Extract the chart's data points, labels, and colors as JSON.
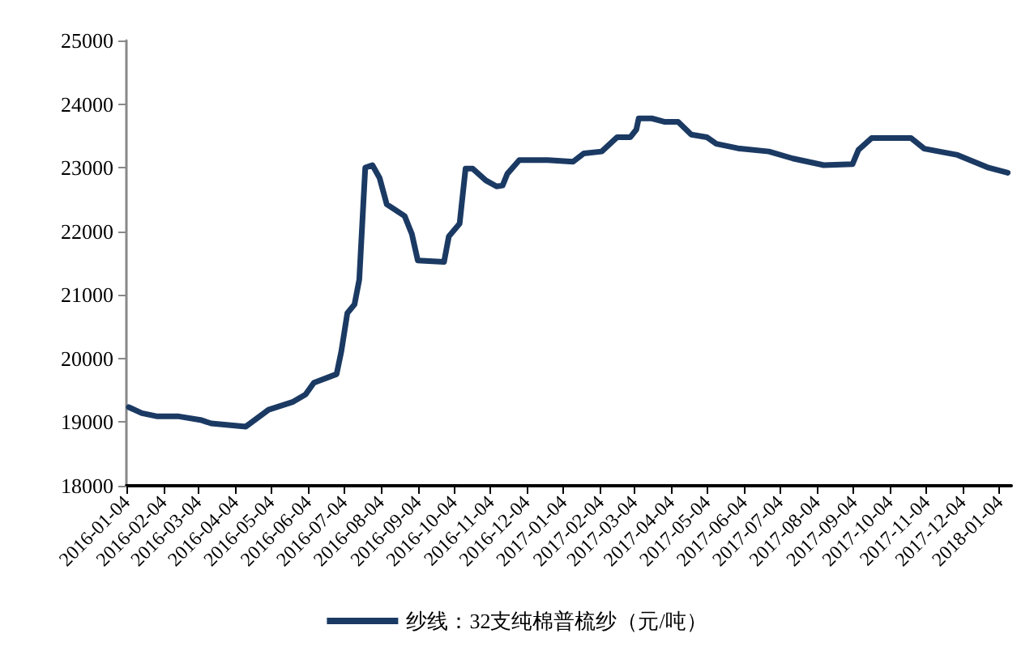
{
  "chart_data": {
    "type": "line",
    "x": [
      "2016-01-06",
      "2016-01-17",
      "2016-01-30",
      "2016-02-17",
      "2016-03-06",
      "2016-03-15",
      "2016-04-04",
      "2016-04-13",
      "2016-05-02",
      "2016-05-22",
      "2016-06-02",
      "2016-06-09",
      "2016-06-28",
      "2016-07-02",
      "2016-07-07",
      "2016-07-13",
      "2016-07-17",
      "2016-07-22",
      "2016-07-28",
      "2016-08-03",
      "2016-08-09",
      "2016-08-24",
      "2016-08-30",
      "2016-09-04",
      "2016-09-26",
      "2016-09-30",
      "2016-10-09",
      "2016-10-14",
      "2016-10-20",
      "2016-10-31",
      "2016-11-09",
      "2016-11-14",
      "2016-11-18",
      "2016-11-28",
      "2016-12-22",
      "2017-01-12",
      "2017-01-21",
      "2017-02-05",
      "2017-02-18",
      "2017-03-01",
      "2017-03-06",
      "2017-03-08",
      "2017-03-19",
      "2017-03-30",
      "2017-04-10",
      "2017-04-21",
      "2017-05-04",
      "2017-05-12",
      "2017-05-30",
      "2017-06-25",
      "2017-07-15",
      "2017-08-10",
      "2017-09-03",
      "2017-09-08",
      "2017-09-19",
      "2017-10-22",
      "2017-11-02",
      "2017-11-30",
      "2017-12-26",
      "2018-01-11"
    ],
    "series": [
      {
        "name": "纱线：32支纯棉普梳纱（元/吨）",
        "color": "#1b3a63",
        "values": [
          19235,
          19140,
          19090,
          19090,
          19035,
          18980,
          18945,
          18930,
          19195,
          19315,
          19435,
          19620,
          19755,
          20115,
          20715,
          20850,
          21240,
          23000,
          23040,
          22840,
          22425,
          22240,
          21960,
          21540,
          21520,
          21920,
          22120,
          22985,
          22985,
          22800,
          22705,
          22720,
          22905,
          23120,
          23120,
          23095,
          23225,
          23255,
          23480,
          23480,
          23600,
          23775,
          23775,
          23720,
          23720,
          23520,
          23480,
          23375,
          23305,
          23255,
          23145,
          23040,
          23055,
          23280,
          23465,
          23465,
          23300,
          23200,
          23000,
          22920
        ]
      }
    ],
    "xlim": [
      "2016-01-04",
      "2018-01-14"
    ],
    "xticks": [
      "2016-01-04",
      "2016-02-04",
      "2016-03-04",
      "2016-04-04",
      "2016-05-04",
      "2016-06-04",
      "2016-07-04",
      "2016-08-04",
      "2016-09-04",
      "2016-10-04",
      "2016-11-04",
      "2016-12-04",
      "2017-01-04",
      "2017-02-04",
      "2017-03-04",
      "2017-04-04",
      "2017-05-04",
      "2017-06-04",
      "2017-07-04",
      "2017-08-04",
      "2017-09-04",
      "2017-10-04",
      "2017-11-04",
      "2017-12-04",
      "2018-01-04"
    ],
    "ylim": [
      18000,
      25000
    ],
    "yticks": [
      18000,
      19000,
      20000,
      21000,
      22000,
      23000,
      24000,
      25000
    ],
    "grid": false,
    "legend": "bottom",
    "marker": "none",
    "line_style": "solid"
  }
}
